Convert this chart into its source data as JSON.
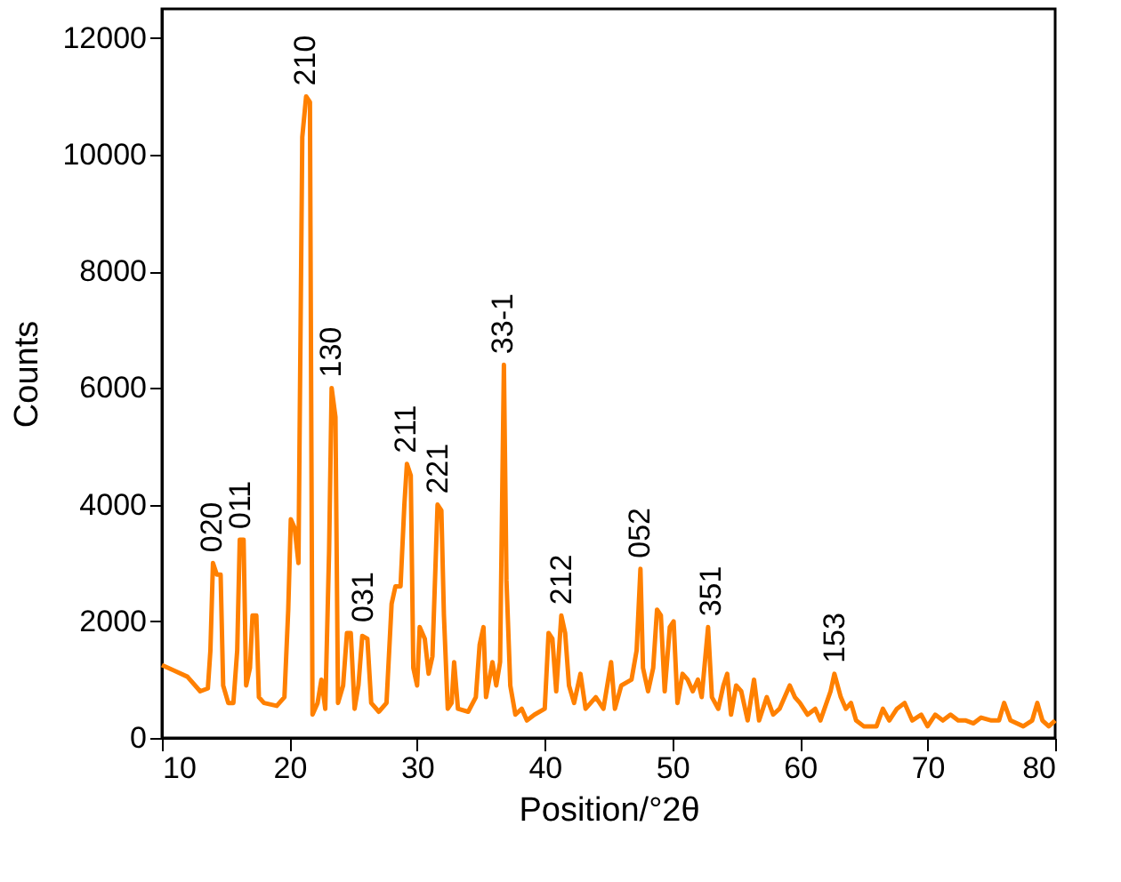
{
  "chart_data": {
    "type": "line",
    "xlabel": "Position/°2θ",
    "ylabel": "Counts",
    "xlim": [
      10,
      80
    ],
    "xticks": [
      10,
      20,
      30,
      40,
      50,
      60,
      70,
      80
    ],
    "ylim": [
      0,
      12500
    ],
    "yticks": [
      0,
      2000,
      4000,
      6000,
      8000,
      10000,
      12000
    ],
    "grid": false,
    "marker": "none",
    "line_style": "solid",
    "x": [
      10,
      11,
      12,
      13,
      13.6,
      13.8,
      14,
      14.3,
      14.6,
      14.8,
      15.2,
      15.6,
      15.9,
      16.1,
      16.4,
      16.6,
      16.9,
      17.1,
      17.4,
      17.6,
      18,
      19,
      19.6,
      19.9,
      20.1,
      20.4,
      20.7,
      21,
      21.3,
      21.6,
      21.8,
      22.2,
      22.5,
      22.8,
      23.1,
      23.3,
      23.6,
      23.8,
      24.2,
      24.5,
      24.8,
      25.1,
      25.4,
      25.7,
      26.1,
      26.4,
      27,
      27.6,
      28,
      28.3,
      28.7,
      29,
      29.2,
      29.5,
      29.7,
      30,
      30.2,
      30.6,
      30.9,
      31.2,
      31.6,
      31.9,
      32.1,
      32.4,
      32.7,
      32.9,
      33.2,
      34,
      34.6,
      34.9,
      35.2,
      35.4,
      35.9,
      36.2,
      36.5,
      36.8,
      37,
      37.3,
      37.7,
      38.2,
      38.6,
      39.2,
      40,
      40.3,
      40.6,
      40.9,
      41.3,
      41.6,
      41.9,
      42.3,
      42.8,
      43.2,
      44,
      44.6,
      45.2,
      45.5,
      46,
      46.8,
      47.2,
      47.5,
      47.7,
      48.1,
      48.5,
      48.8,
      49.1,
      49.4,
      49.8,
      50.1,
      50.4,
      50.8,
      51.2,
      51.6,
      52,
      52.3,
      52.8,
      53.1,
      53.6,
      54,
      54.3,
      54.6,
      55,
      55.4,
      55.9,
      56.4,
      56.8,
      57.4,
      57.9,
      58.4,
      59.2,
      59.6,
      60,
      60.6,
      61.2,
      61.6,
      62.4,
      62.7,
      63.2,
      63.6,
      64,
      64.4,
      65,
      66,
      66.5,
      67,
      67.6,
      68.2,
      68.8,
      69.5,
      70,
      70.6,
      71.2,
      71.8,
      72.4,
      73,
      73.6,
      74.2,
      75,
      75.6,
      76,
      76.5,
      77.5,
      78.2,
      78.6,
      79,
      79.5,
      80
    ],
    "series": [
      {
        "color": "#ff8000",
        "values": [
          1250,
          1150,
          1050,
          800,
          850,
          1500,
          3000,
          2800,
          2800,
          900,
          600,
          600,
          1500,
          3400,
          3400,
          900,
          1200,
          2100,
          2100,
          700,
          600,
          550,
          700,
          2200,
          3750,
          3600,
          3000,
          10300,
          11000,
          10900,
          400,
          600,
          1000,
          500,
          3200,
          6000,
          5500,
          600,
          900,
          1800,
          1800,
          500,
          900,
          1750,
          1700,
          600,
          450,
          600,
          2300,
          2600,
          2600,
          4000,
          4700,
          4500,
          1200,
          900,
          1900,
          1700,
          1100,
          1400,
          4000,
          3900,
          2100,
          500,
          600,
          1300,
          500,
          450,
          700,
          1600,
          1900,
          700,
          1300,
          900,
          1300,
          6400,
          2700,
          900,
          400,
          500,
          300,
          400,
          500,
          1800,
          1700,
          800,
          2100,
          1800,
          900,
          600,
          1100,
          500,
          700,
          500,
          1300,
          500,
          900,
          1000,
          1500,
          2900,
          1200,
          800,
          1200,
          2200,
          2100,
          800,
          1900,
          2000,
          600,
          1100,
          1000,
          800,
          1000,
          700,
          1900,
          700,
          500,
          900,
          1100,
          400,
          900,
          800,
          300,
          1000,
          300,
          700,
          400,
          500,
          900,
          700,
          600,
          400,
          500,
          300,
          800,
          1100,
          700,
          500,
          600,
          300,
          200,
          200,
          500,
          300,
          500,
          600,
          300,
          400,
          200,
          400,
          300,
          400,
          300,
          300,
          250,
          350,
          300,
          300,
          600,
          300,
          200,
          300,
          600,
          300,
          200,
          300
        ]
      }
    ],
    "annotations": [
      {
        "text": "020",
        "x": 14,
        "y": 3000
      },
      {
        "text": "011",
        "x": 16.2,
        "y": 3400
      },
      {
        "text": "210",
        "x": 21.3,
        "y": 11000
      },
      {
        "text": "130",
        "x": 23.3,
        "y": 6000
      },
      {
        "text": "031",
        "x": 25.8,
        "y": 1800
      },
      {
        "text": "211",
        "x": 29.2,
        "y": 4700
      },
      {
        "text": "221",
        "x": 31.7,
        "y": 4000
      },
      {
        "text": "33-1",
        "x": 36.8,
        "y": 6400
      },
      {
        "text": "212",
        "x": 41.4,
        "y": 2100
      },
      {
        "text": "052",
        "x": 47.5,
        "y": 2900
      },
      {
        "text": "351",
        "x": 53.1,
        "y": 1900
      },
      {
        "text": "153",
        "x": 62.8,
        "y": 1100
      }
    ]
  }
}
